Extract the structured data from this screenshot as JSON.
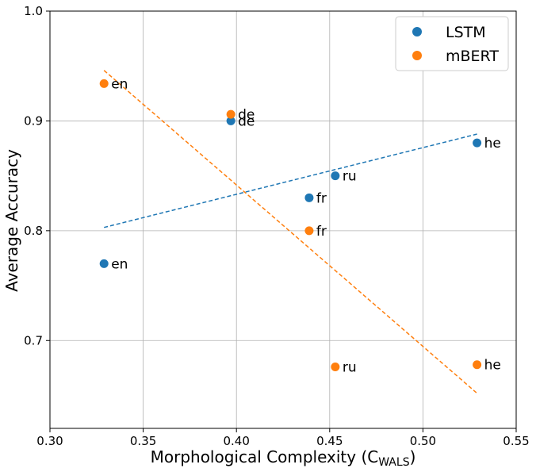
{
  "chart_data": {
    "type": "scatter",
    "title": "",
    "xlabel": "Morphological Complexity (C",
    "xlabel_subscript": "WALS",
    "xlabel_close": ")",
    "ylabel": "Average Accuracy",
    "xlim": [
      0.3,
      0.55
    ],
    "ylim": [
      0.62,
      1.0
    ],
    "xticks": [
      0.3,
      0.35,
      0.4,
      0.45,
      0.5,
      0.55
    ],
    "xtick_labels": [
      "0.30",
      "0.35",
      "0.40",
      "0.45",
      "0.50",
      "0.55"
    ],
    "yticks": [
      0.7,
      0.8,
      0.9,
      1.0
    ],
    "ytick_labels": [
      "0.7",
      "0.8",
      "0.9",
      "1.0"
    ],
    "grid": true,
    "legend_position": "top-right",
    "series": [
      {
        "name": "LSTM",
        "color": "#1f77b4",
        "points": [
          {
            "x": 0.329,
            "y": 0.77,
            "label": "en"
          },
          {
            "x": 0.397,
            "y": 0.9,
            "label": "de"
          },
          {
            "x": 0.439,
            "y": 0.83,
            "label": "fr"
          },
          {
            "x": 0.453,
            "y": 0.85,
            "label": "ru"
          },
          {
            "x": 0.529,
            "y": 0.88,
            "label": "he"
          }
        ],
        "trend": {
          "x": [
            0.329,
            0.529
          ],
          "y": [
            0.803,
            0.888
          ]
        }
      },
      {
        "name": "mBERT",
        "color": "#ff7f0e",
        "points": [
          {
            "x": 0.329,
            "y": 0.934,
            "label": "en"
          },
          {
            "x": 0.397,
            "y": 0.906,
            "label": "de"
          },
          {
            "x": 0.439,
            "y": 0.8,
            "label": "fr"
          },
          {
            "x": 0.453,
            "y": 0.676,
            "label": "ru"
          },
          {
            "x": 0.529,
            "y": 0.678,
            "label": "he"
          }
        ],
        "trend": {
          "x": [
            0.329,
            0.529
          ],
          "y": [
            0.946,
            0.652
          ]
        }
      }
    ]
  }
}
